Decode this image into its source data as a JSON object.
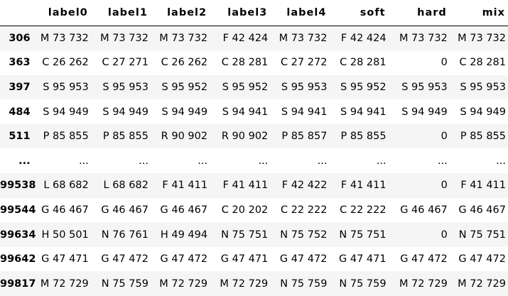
{
  "table": {
    "corner": "",
    "columns": [
      "label0",
      "label1",
      "label2",
      "label3",
      "label4",
      "soft",
      "hard",
      "mix"
    ],
    "rows": [
      {
        "index": "306",
        "cells": [
          "M 73 732",
          "M 73 732",
          "M 73 732",
          "F 42 424",
          "M 73 732",
          "F 42 424",
          "M 73 732",
          "M 73 732"
        ]
      },
      {
        "index": "363",
        "cells": [
          "C 26 262",
          "C 27 271",
          "C 26 262",
          "C 28 281",
          "C 27 272",
          "C 28 281",
          "0",
          "C 28 281"
        ]
      },
      {
        "index": "397",
        "cells": [
          "S 95 953",
          "S 95 953",
          "S 95 952",
          "S 95 952",
          "S 95 953",
          "S 95 952",
          "S 95 953",
          "S 95 953"
        ]
      },
      {
        "index": "484",
        "cells": [
          "S 94 949",
          "S 94 949",
          "S 94 949",
          "S 94 941",
          "S 94 941",
          "S 94 941",
          "S 94 949",
          "S 94 949"
        ]
      },
      {
        "index": "511",
        "cells": [
          "P 85 855",
          "P 85 855",
          "R 90 902",
          "R 90 902",
          "P 85 857",
          "P 85 855",
          "0",
          "P 85 855"
        ]
      },
      {
        "index": "...",
        "cells": [
          "...",
          "...",
          "...",
          "...",
          "...",
          "...",
          "...",
          "..."
        ]
      },
      {
        "index": "99538",
        "cells": [
          "L 68 682",
          "L 68 682",
          "F 41 411",
          "F 41 411",
          "F 42 422",
          "F 41 411",
          "0",
          "F 41 411"
        ]
      },
      {
        "index": "99544",
        "cells": [
          "G 46 467",
          "G 46 467",
          "G 46 467",
          "C 20 202",
          "C 22 222",
          "C 22 222",
          "G 46 467",
          "G 46 467"
        ]
      },
      {
        "index": "99634",
        "cells": [
          "H 50 501",
          "N 76 761",
          "H 49 494",
          "N 75 751",
          "N 75 752",
          "N 75 751",
          "0",
          "N 75 751"
        ]
      },
      {
        "index": "99642",
        "cells": [
          "G 47 471",
          "G 47 472",
          "G 47 472",
          "G 47 471",
          "G 47 472",
          "G 47 471",
          "G 47 472",
          "G 47 472"
        ]
      },
      {
        "index": "99817",
        "cells": [
          "M 72 729",
          "N 75 759",
          "M 72 729",
          "M 72 729",
          "N 75 759",
          "N 75 759",
          "M 72 729",
          "M 72 729"
        ]
      }
    ]
  }
}
